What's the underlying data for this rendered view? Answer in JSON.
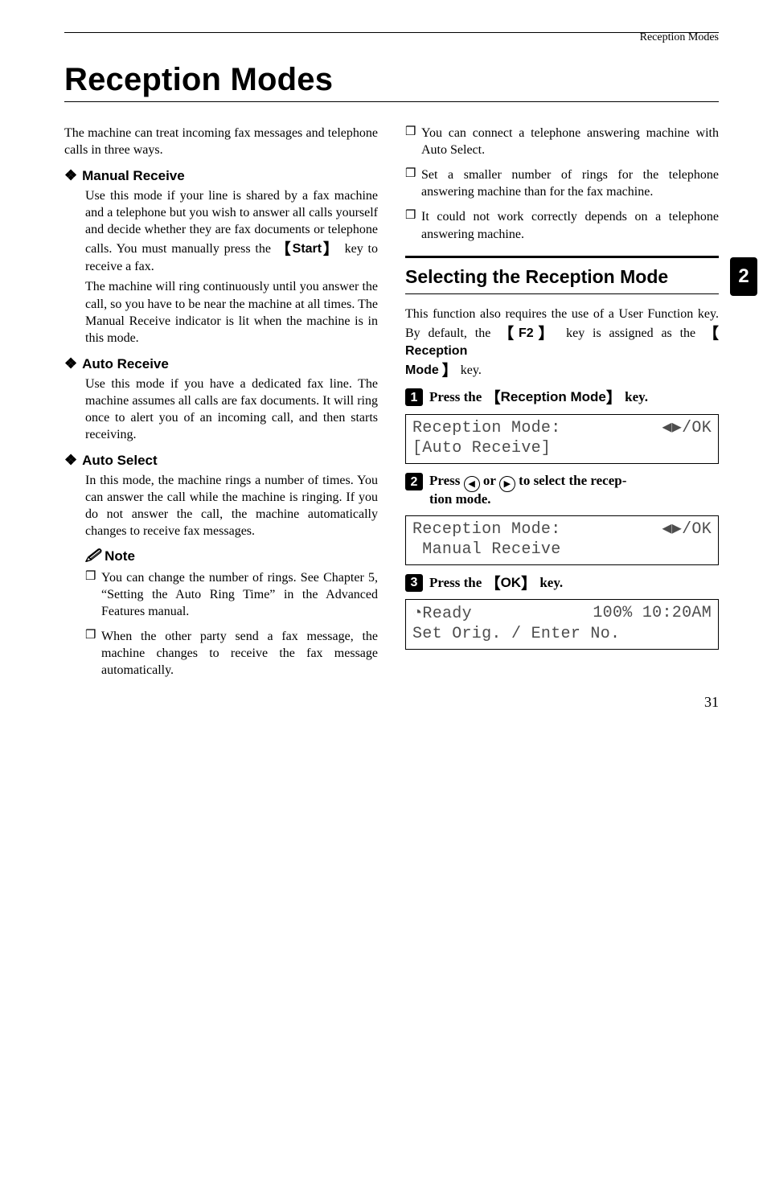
{
  "running_head": "Reception Modes",
  "side_tab": "2",
  "page_number": "31",
  "h1": "Reception Modes",
  "left": {
    "intro": "The machine can treat incoming fax messages and telephone calls in three ways.",
    "sec1": {
      "title": "Manual Receive",
      "p1a": "Use this mode if your line is shared by a fax machine and a telephone but you wish to answer all calls yourself and decide whether they are fax documents or telephone calls. You must manually press the ",
      "key1": "Start",
      "p1b": " key to receive a fax.",
      "p2": "The machine will ring continuously until you answer the call, so you have to be near the machine at all times. The Manual Receive indicator is lit when the machine is in this mode."
    },
    "sec2": {
      "title": "Auto Receive",
      "p1": "Use this mode if you have a dedicated fax line. The machine assumes all calls are fax documents. It will ring once to alert you of an incoming call, and then starts receiving."
    },
    "sec3": {
      "title": "Auto Select",
      "p1": "In this mode, the machine rings a number of times. You can answer the call while the machine is ringing. If you do not answer the call, the machine automatically changes to receive fax messages.",
      "note_label": "Note",
      "b1": "You can change the number of rings. See Chapter 5, “Setting the Auto Ring Time” in the Advanced Features manual.",
      "b2": "When the other party send a fax message, the machine changes to receive the fax message automatically."
    }
  },
  "right": {
    "bullets": {
      "b1": "You can connect a telephone answering machine with Auto Select.",
      "b2": "Set a smaller number of rings for the telephone answering machine than for the fax machine.",
      "b3": "It could not work correctly depends on a telephone answering machine."
    },
    "h2": "Selecting the Reception Mode",
    "intro_a": "This function also requires the use of a User Function key. By default, the ",
    "key_f2": "F2",
    "intro_b": " key is assigned as the ",
    "key_rm1": "Reception",
    "key_rm2": "Mode",
    "intro_c": " key.",
    "step1": {
      "a": "Press the ",
      "key": "Reception Mode",
      "b": " key."
    },
    "lcd1": {
      "l1a": "Reception Mode:",
      "l1b": "◀▶/OK",
      "l2": "[Auto Receive]"
    },
    "step2": {
      "a": "Press ",
      "b": " or ",
      "c": " to select the recep-",
      "d": "tion mode."
    },
    "lcd2": {
      "l1a": "Reception Mode:",
      "l1b": "◀▶/OK",
      "l2": " Manual Receive"
    },
    "step3": {
      "a": "Press the ",
      "key": "OK",
      "b": " key."
    },
    "lcd3": {
      "l1a": "Ready",
      "l1b": "100% 10:20AM",
      "l2": "Set Orig. / Enter No."
    }
  }
}
